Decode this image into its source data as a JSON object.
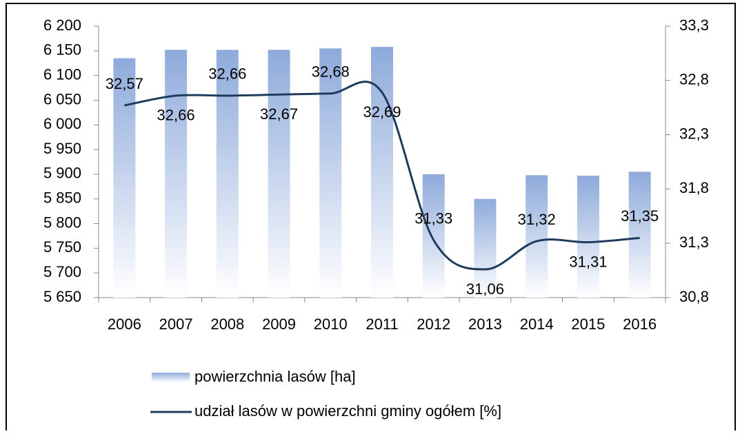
{
  "chart_data": {
    "type": "bar-line",
    "categories": [
      "2006",
      "2007",
      "2008",
      "2009",
      "2010",
      "2011",
      "2012",
      "2013",
      "2014",
      "2015",
      "2016"
    ],
    "series": [
      {
        "name": "powierzchnia lasów [ha]",
        "color": "#8eaadb",
        "type": "bar",
        "values": [
          6135,
          6152,
          6152,
          6152,
          6155,
          6158,
          5900,
          5850,
          5898,
          5897,
          5905
        ]
      },
      {
        "name": "udział lasów w powierzchni gminy ogółem [%]",
        "color": "#1f3b5c",
        "type": "line",
        "axis": "y2",
        "values": [
          32.57,
          32.66,
          32.66,
          32.67,
          32.68,
          32.69,
          31.33,
          31.06,
          31.32,
          31.31,
          31.35
        ],
        "value_labels": [
          "32,57",
          "32,66",
          "32,66",
          "32,67",
          "32,68",
          "32,69",
          "31,33",
          "31,06",
          "31,32",
          "31,31",
          "31,35"
        ]
      }
    ],
    "ylim": [
      5650,
      6200
    ],
    "yticks": [
      {
        "value": 5650,
        "label": "5 650"
      },
      {
        "value": 5700,
        "label": "5 700"
      },
      {
        "value": 5750,
        "label": "5 750"
      },
      {
        "value": 5800,
        "label": "5 800"
      },
      {
        "value": 5850,
        "label": "5 850"
      },
      {
        "value": 5900,
        "label": "5 900"
      },
      {
        "value": 5950,
        "label": "5 950"
      },
      {
        "value": 6000,
        "label": "6 000"
      },
      {
        "value": 6050,
        "label": "6 050"
      },
      {
        "value": 6100,
        "label": "6 100"
      },
      {
        "value": 6150,
        "label": "6 150"
      },
      {
        "value": 6200,
        "label": "6 200"
      }
    ],
    "y2lim": [
      30.8,
      33.3
    ],
    "y2ticks": [
      {
        "value": 30.8,
        "label": "30,8"
      },
      {
        "value": 31.3,
        "label": "31,3"
      },
      {
        "value": 31.8,
        "label": "31,8"
      },
      {
        "value": 32.3,
        "label": "32,3"
      },
      {
        "value": 32.8,
        "label": "32,8"
      },
      {
        "value": 33.3,
        "label": "33,3"
      }
    ],
    "grid": false,
    "legend": "bottom"
  }
}
